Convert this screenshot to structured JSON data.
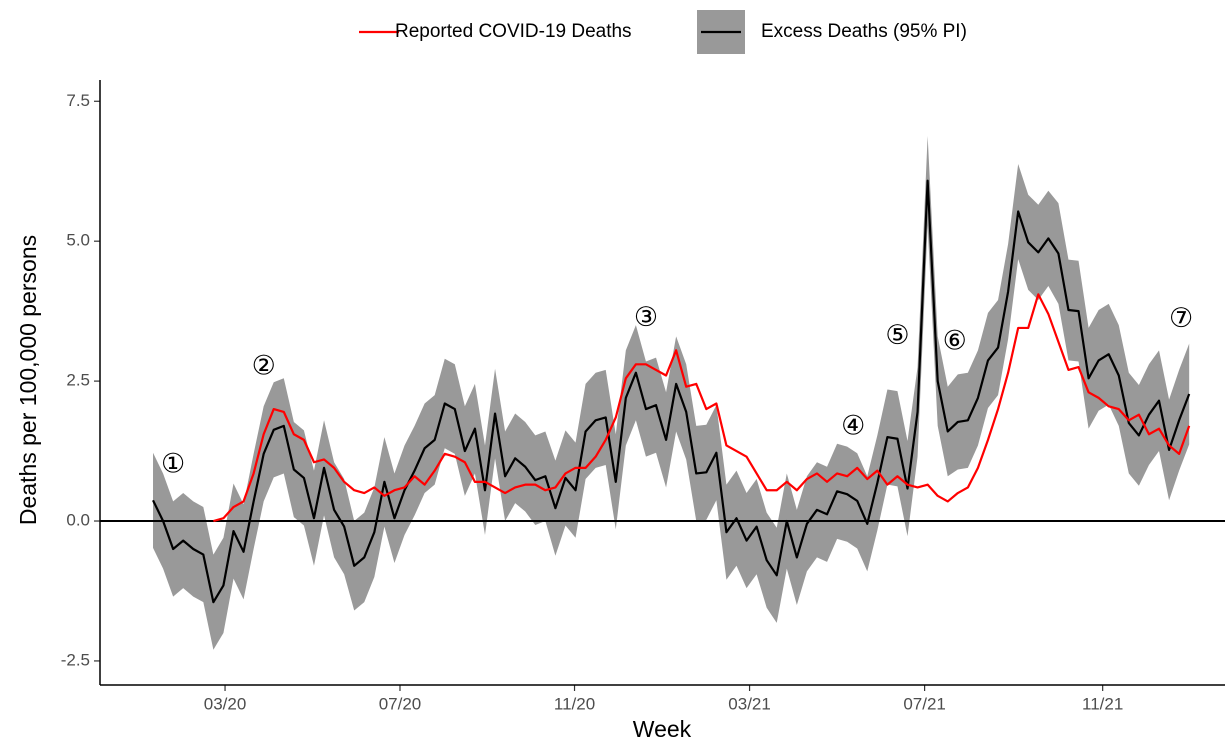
{
  "chart_data": {
    "type": "line",
    "x_label": "Week",
    "y_label": "Deaths per 100,000 persons",
    "x": [
      0,
      1,
      2,
      3,
      4,
      5,
      6,
      7,
      8,
      9,
      10,
      11,
      12,
      13,
      14,
      15,
      16,
      17,
      18,
      19,
      20,
      21,
      22,
      23,
      24,
      25,
      26,
      27,
      28,
      29,
      30,
      31,
      32,
      33,
      34,
      35,
      36,
      37,
      38,
      39,
      40,
      41,
      42,
      43,
      44,
      45,
      46,
      47,
      48,
      49,
      50,
      51,
      52,
      53,
      54,
      55,
      56,
      57,
      58,
      59,
      60,
      61,
      62,
      63,
      64,
      65,
      66,
      67,
      68,
      69,
      70,
      71,
      72,
      73,
      74,
      75,
      76,
      77,
      78,
      79,
      80,
      81,
      82,
      83,
      84,
      85,
      86,
      87,
      88,
      89,
      90,
      91,
      92,
      93,
      94,
      95,
      96,
      97,
      98,
      99,
      100,
      101,
      102,
      103
    ],
    "xlim": [
      -5.27,
      106.56
    ],
    "xticks": [
      {
        "value": 7.16,
        "label": "03/20"
      },
      {
        "value": 24.55,
        "label": "07/20"
      },
      {
        "value": 41.9,
        "label": "11/20"
      },
      {
        "value": 59.3,
        "label": "03/21"
      },
      {
        "value": 76.7,
        "label": "07/21"
      },
      {
        "value": 94.4,
        "label": "11/21"
      }
    ],
    "ylim": [
      -2.93,
      7.88
    ],
    "yticks": [
      -2.5,
      {
        "value": 0,
        "label": "0.0"
      },
      2.5,
      {
        "value": 5,
        "label": "5.0"
      },
      7.5
    ],
    "zero_line": true,
    "legend": "top",
    "series": [
      {
        "name": "Reported COVID-19 Deaths",
        "color": "#ff0000",
        "values": [
          null,
          null,
          null,
          null,
          null,
          null,
          0,
          0.05,
          0.25,
          0.35,
          0.85,
          1.55,
          2,
          1.95,
          1.55,
          1.45,
          1.05,
          1.1,
          0.95,
          0.7,
          0.55,
          0.5,
          0.6,
          0.45,
          0.55,
          0.6,
          0.8,
          0.65,
          0.9,
          1.2,
          1.15,
          1.05,
          0.7,
          0.7,
          0.6,
          0.5,
          0.6,
          0.65,
          0.65,
          0.55,
          0.6,
          0.85,
          0.95,
          0.95,
          1.15,
          1.45,
          1.85,
          2.55,
          2.8,
          2.8,
          2.7,
          2.6,
          3.05,
          2.4,
          2.45,
          2,
          2.1,
          1.35,
          1.25,
          1.15,
          0.85,
          0.55,
          0.55,
          0.7,
          0.55,
          0.75,
          0.85,
          0.7,
          0.85,
          0.8,
          0.95,
          0.75,
          0.9,
          0.65,
          0.8,
          0.65,
          0.6,
          0.65,
          0.45,
          0.35,
          0.5,
          0.6,
          0.95,
          1.45,
          2,
          2.65,
          3.45,
          3.45,
          4.05,
          3.7,
          3.2,
          2.7,
          2.75,
          2.3,
          2.2,
          2.05,
          2,
          1.8,
          1.9,
          1.55,
          1.65,
          1.35,
          1.2,
          1.7
        ]
      },
      {
        "name": "Excess Deaths (95% PI)",
        "color": "#000000",
        "band_color": "#999999",
        "values": [
          0.37,
          0,
          -0.5,
          -0.35,
          -0.5,
          -0.6,
          -1.45,
          -1.15,
          -0.18,
          -0.55,
          0.35,
          1.2,
          1.63,
          1.7,
          0.92,
          0.77,
          0.05,
          0.95,
          0.2,
          -0.1,
          -0.8,
          -0.65,
          -0.2,
          0.7,
          0.05,
          0.55,
          0.9,
          1.3,
          1.45,
          2.1,
          2,
          1.25,
          1.65,
          0.55,
          1.92,
          0.8,
          1.12,
          0.97,
          0.73,
          0.8,
          0.23,
          0.77,
          0.55,
          1.6,
          1.8,
          1.85,
          0.7,
          2.2,
          2.65,
          2,
          2.07,
          1.45,
          2.45,
          1.95,
          0.85,
          0.87,
          1.22,
          -0.2,
          0.05,
          -0.35,
          -0.1,
          -0.7,
          -0.97,
          0,
          -0.65,
          -0.05,
          0.2,
          0.12,
          0.53,
          0.48,
          0.36,
          -0.05,
          0.68,
          1.5,
          1.47,
          0.58,
          1.95,
          6.08,
          2.5,
          1.6,
          1.77,
          1.8,
          2.2,
          2.87,
          3.1,
          4.1,
          5.53,
          4.98,
          4.8,
          5.05,
          4.78,
          3.77,
          3.75,
          2.55,
          2.87,
          2.98,
          2.6,
          1.75,
          1.53,
          1.9,
          2.15,
          1.27,
          1.8,
          2.27
        ],
        "error": [
          0.85,
          0.85,
          0.85,
          0.85,
          0.85,
          0.85,
          0.85,
          0.85,
          0.85,
          0.85,
          0.85,
          0.85,
          0.85,
          0.85,
          0.85,
          0.85,
          0.85,
          0.85,
          0.85,
          0.85,
          0.8,
          0.8,
          0.8,
          0.8,
          0.8,
          0.8,
          0.8,
          0.8,
          0.8,
          0.8,
          0.8,
          0.8,
          0.8,
          0.8,
          0.8,
          0.8,
          0.8,
          0.8,
          0.8,
          0.8,
          0.85,
          0.85,
          0.85,
          0.85,
          0.85,
          0.85,
          0.85,
          0.85,
          0.85,
          0.85,
          0.85,
          0.85,
          0.85,
          0.85,
          0.85,
          0.85,
          0.85,
          0.85,
          0.85,
          0.85,
          0.85,
          0.85,
          0.85,
          0.85,
          0.85,
          0.85,
          0.85,
          0.85,
          0.85,
          0.85,
          0.85,
          0.85,
          0.85,
          0.85,
          0.85,
          0.85,
          0.8,
          0.8,
          0.8,
          0.8,
          0.85,
          0.85,
          0.85,
          0.85,
          0.85,
          0.85,
          0.85,
          0.85,
          0.85,
          0.85,
          0.9,
          0.9,
          0.9,
          0.9,
          0.9,
          0.9,
          0.9,
          0.9,
          0.9,
          0.9,
          0.9,
          0.9,
          0.9,
          0.9
        ]
      }
    ],
    "annotations": [
      {
        "text": "①",
        "x": 2,
        "y": 1.0
      },
      {
        "text": "②",
        "x": 11,
        "y": 2.75
      },
      {
        "text": "③",
        "x": 49,
        "y": 3.62
      },
      {
        "text": "④",
        "x": 69.6,
        "y": 1.68
      },
      {
        "text": "⑤",
        "x": 74,
        "y": 3.3
      },
      {
        "text": "⑥",
        "x": 79.7,
        "y": 3.2
      },
      {
        "text": "⑦",
        "x": 102.2,
        "y": 3.6
      }
    ]
  }
}
